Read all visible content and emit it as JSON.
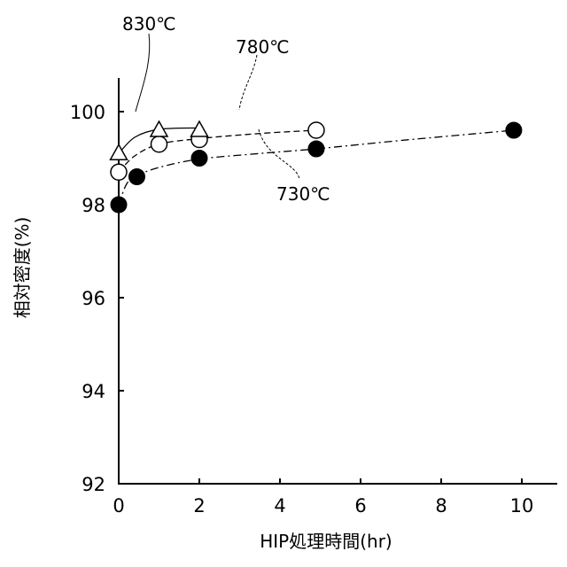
{
  "chart_data": {
    "type": "scatter",
    "xlabel": "HIP処理時間(hr)",
    "ylabel": "相対密度(%)",
    "xlim": [
      0,
      11
    ],
    "ylim": [
      92,
      100.6
    ],
    "xticks": [
      0,
      2,
      4,
      6,
      8,
      10
    ],
    "yticks": [
      92,
      94,
      96,
      98,
      100
    ],
    "grid": false,
    "series": [
      {
        "name": "830℃",
        "marker": "triangle-open",
        "line": "solid",
        "x": [
          0,
          1,
          2
        ],
        "y": [
          99.1,
          99.6,
          99.6
        ],
        "curve": [
          [
            0,
            99.1
          ],
          [
            0.4,
            99.45
          ],
          [
            1,
            99.62
          ],
          [
            2,
            99.65
          ]
        ]
      },
      {
        "name": "780℃",
        "marker": "circle-open",
        "line": "dashed",
        "x": [
          0,
          1,
          2,
          4.9
        ],
        "y": [
          98.7,
          99.3,
          99.4,
          99.6
        ],
        "curve": [
          [
            0,
            98.7
          ],
          [
            0.4,
            99.05
          ],
          [
            1,
            99.3
          ],
          [
            2,
            99.42
          ],
          [
            3.5,
            99.53
          ],
          [
            4.9,
            99.6
          ]
        ]
      },
      {
        "name": "730℃",
        "marker": "circle-filled",
        "line": "dashdot",
        "x": [
          0,
          0.45,
          2,
          4.9,
          9.8
        ],
        "y": [
          98.0,
          98.6,
          99.0,
          99.2,
          99.6
        ],
        "curve": [
          [
            0,
            98.0
          ],
          [
            0.2,
            98.45
          ],
          [
            0.45,
            98.62
          ],
          [
            1,
            98.8
          ],
          [
            2,
            98.98
          ],
          [
            3.5,
            99.1
          ],
          [
            4.9,
            99.2
          ],
          [
            7,
            99.38
          ],
          [
            9.8,
            99.6
          ]
        ]
      }
    ]
  }
}
